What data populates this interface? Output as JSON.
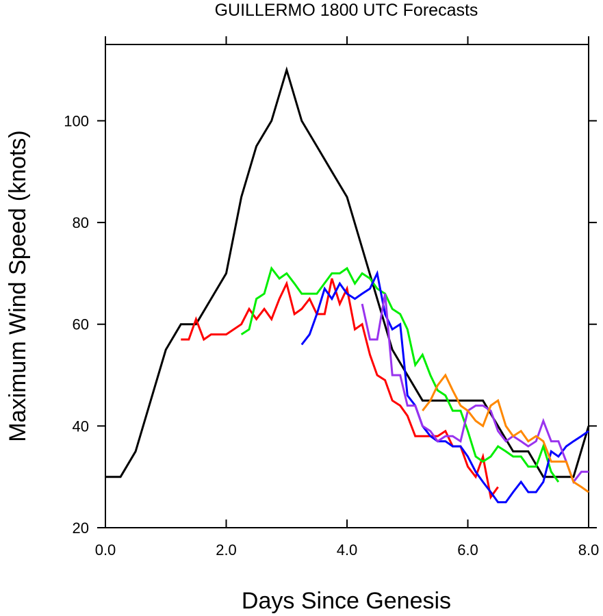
{
  "chart_data": {
    "type": "line",
    "title": "GUILLERMO 1800 UTC Forecasts",
    "xlabel": "Days Since Genesis",
    "ylabel": "Maximum Wind Speed (knots)",
    "xlim": [
      0,
      8
    ],
    "ylim": [
      20,
      115
    ],
    "xticks": [
      0,
      2,
      4,
      6,
      8
    ],
    "xtick_labels": [
      "0.0",
      "2.0",
      "4.0",
      "6.0",
      "8.0"
    ],
    "yticks": [
      20,
      40,
      60,
      80,
      100
    ],
    "ytick_labels": [
      "20",
      "40",
      "60",
      "80",
      "100"
    ],
    "grid": false,
    "legend": "none",
    "series": [
      {
        "color": "#000000",
        "x": [
          0,
          0.25,
          0.5,
          0.75,
          1.0,
          1.25,
          1.5,
          1.75,
          2.0,
          2.25,
          2.5,
          2.75,
          3.0,
          3.25,
          3.5,
          3.75,
          4.0,
          4.25,
          4.5,
          4.75,
          5.0,
          5.25,
          5.5,
          5.75,
          6.0,
          6.25,
          6.5,
          6.75,
          7.0,
          7.25,
          7.5,
          7.75,
          8.0
        ],
        "y": [
          30,
          30,
          35,
          45,
          55,
          60,
          60,
          65,
          70,
          85,
          95,
          100,
          110,
          100,
          95,
          90,
          85,
          75,
          65,
          55,
          50,
          45,
          45,
          45,
          45,
          45,
          40,
          35,
          35,
          30,
          30,
          30,
          40
        ]
      },
      {
        "color": "#ff0000",
        "x": [
          1.25,
          1.38,
          1.5,
          1.63,
          1.75,
          2.0,
          2.25,
          2.38,
          2.5,
          2.63,
          2.75,
          2.88,
          3.0,
          3.13,
          3.25,
          3.38,
          3.5,
          3.63,
          3.75,
          3.88,
          4.0,
          4.13,
          4.25,
          4.38,
          4.5,
          4.63,
          4.75,
          4.88,
          5.0,
          5.13,
          5.25,
          5.38,
          5.5,
          5.63,
          5.75,
          5.88,
          6.0,
          6.13,
          6.25,
          6.38,
          6.5
        ],
        "y": [
          57,
          57,
          61,
          57,
          58,
          58,
          60,
          63,
          61,
          63,
          61,
          65,
          68,
          62,
          63,
          65,
          62,
          62,
          69,
          64,
          67,
          59,
          60,
          54,
          50,
          49,
          45,
          44,
          42,
          38,
          38,
          38,
          38,
          39,
          36,
          36,
          32,
          30,
          34,
          26,
          28
        ]
      },
      {
        "color": "#00ee00",
        "x": [
          2.25,
          2.38,
          2.5,
          2.63,
          2.75,
          2.88,
          3.0,
          3.13,
          3.25,
          3.5,
          3.75,
          3.88,
          4.0,
          4.13,
          4.25,
          4.38,
          4.5,
          4.63,
          4.75,
          4.88,
          5.0,
          5.13,
          5.25,
          5.38,
          5.5,
          5.63,
          5.75,
          5.88,
          6.0,
          6.13,
          6.25,
          6.38,
          6.5,
          6.63,
          6.75,
          6.88,
          7.0,
          7.13,
          7.25,
          7.38,
          7.5
        ],
        "y": [
          58,
          59,
          65,
          66,
          71,
          69,
          70,
          68,
          66,
          66,
          70,
          70,
          71,
          68,
          70,
          69,
          67,
          66,
          63,
          62,
          59,
          52,
          54,
          50,
          47,
          46,
          43,
          43,
          39,
          34,
          33,
          34,
          36,
          35,
          34,
          34,
          32,
          32,
          36,
          31,
          29
        ]
      },
      {
        "color": "#0000ff",
        "x": [
          3.25,
          3.38,
          3.5,
          3.63,
          3.75,
          3.88,
          4.0,
          4.13,
          4.25,
          4.38,
          4.5,
          4.63,
          4.75,
          4.88,
          5.0,
          5.13,
          5.25,
          5.38,
          5.5,
          5.63,
          5.75,
          5.88,
          6.0,
          6.13,
          6.25,
          6.38,
          6.5,
          6.63,
          6.75,
          6.88,
          7.0,
          7.13,
          7.25,
          7.38,
          7.5,
          7.63,
          7.75,
          7.88,
          8.0
        ],
        "y": [
          56,
          58,
          62,
          67,
          65,
          68,
          66,
          65,
          66,
          67,
          70,
          62,
          59,
          60,
          46,
          44,
          40,
          38,
          37,
          37,
          36,
          36,
          34,
          31,
          29,
          27,
          25,
          25,
          27,
          29,
          27,
          27,
          29,
          35,
          34,
          36,
          37,
          38,
          39
        ]
      },
      {
        "color": "#9933ee",
        "x": [
          4.25,
          4.38,
          4.5,
          4.63,
          4.75,
          4.88,
          5.0,
          5.13,
          5.25,
          5.38,
          5.5,
          5.63,
          5.75,
          5.88,
          6.0,
          6.13,
          6.25,
          6.38,
          6.5,
          6.63,
          6.75,
          6.88,
          7.0,
          7.13,
          7.25,
          7.38,
          7.5,
          7.63,
          7.75,
          7.88,
          8.0
        ],
        "y": [
          64,
          57,
          57,
          66,
          50,
          50,
          44,
          44,
          40,
          39,
          37,
          38,
          38,
          37,
          43,
          44,
          44,
          43,
          39,
          37,
          38,
          37,
          36,
          37,
          41,
          37,
          37,
          33,
          29,
          31,
          31
        ]
      },
      {
        "color": "#ff8800",
        "x": [
          5.25,
          5.38,
          5.5,
          5.63,
          5.75,
          5.88,
          6.0,
          6.13,
          6.25,
          6.38,
          6.5,
          6.63,
          6.75,
          6.88,
          7.0,
          7.13,
          7.25,
          7.38,
          7.5,
          7.63,
          7.75,
          7.88,
          8.0
        ],
        "y": [
          43,
          45,
          48,
          50,
          47,
          44,
          43,
          41,
          40,
          44,
          45,
          40,
          38,
          39,
          37,
          38,
          37,
          33,
          33,
          33,
          29,
          28,
          27
        ]
      }
    ]
  }
}
